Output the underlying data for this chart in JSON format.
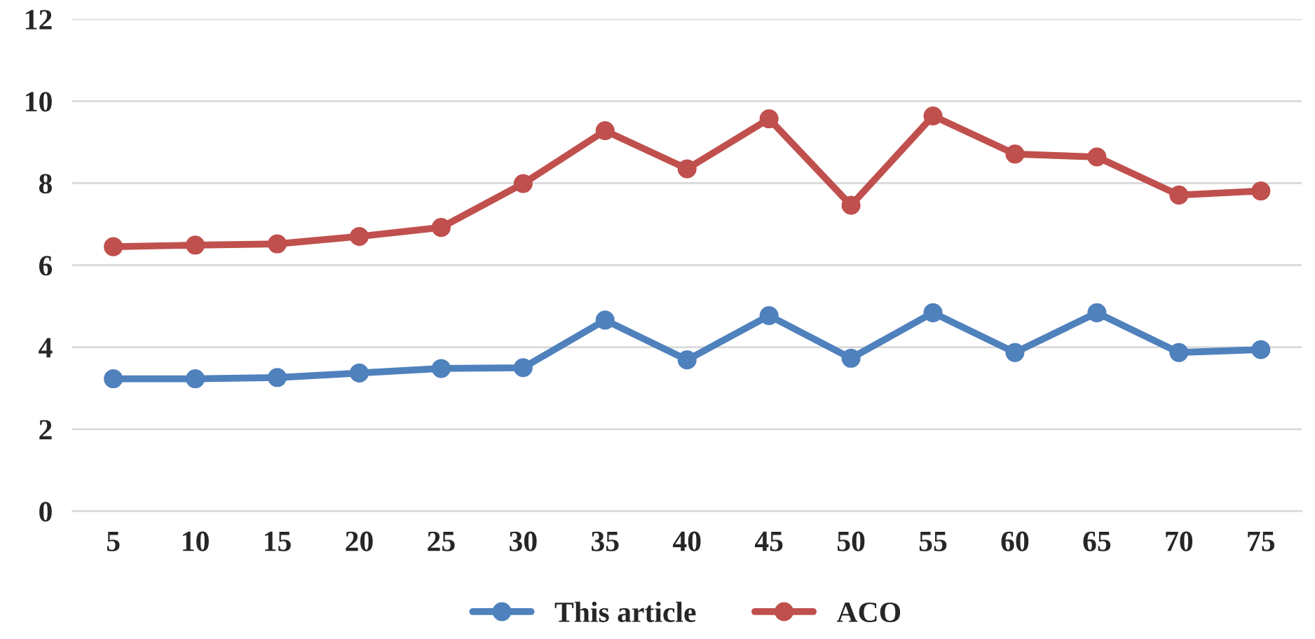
{
  "chart_data": {
    "type": "line",
    "categories": [
      "5",
      "10",
      "15",
      "20",
      "25",
      "30",
      "35",
      "40",
      "45",
      "50",
      "55",
      "60",
      "65",
      "70",
      "75"
    ],
    "series": [
      {
        "name": "This article",
        "color": "#4f81bd",
        "values": [
          3.23,
          3.23,
          3.26,
          3.37,
          3.48,
          3.5,
          4.66,
          3.69,
          4.77,
          3.73,
          4.84,
          3.87,
          4.84,
          3.87,
          3.94
        ]
      },
      {
        "name": "ACO",
        "color": "#c0504d",
        "values": [
          6.45,
          6.49,
          6.52,
          6.7,
          6.92,
          7.99,
          9.28,
          8.35,
          9.57,
          7.46,
          9.64,
          8.71,
          8.64,
          7.71,
          7.81
        ]
      }
    ],
    "ylim": [
      0,
      12
    ],
    "yticks": [
      0,
      2,
      4,
      6,
      8,
      10,
      12
    ],
    "grid": "y",
    "legend": "bottom",
    "marker": "circle",
    "line_style": "solid"
  }
}
